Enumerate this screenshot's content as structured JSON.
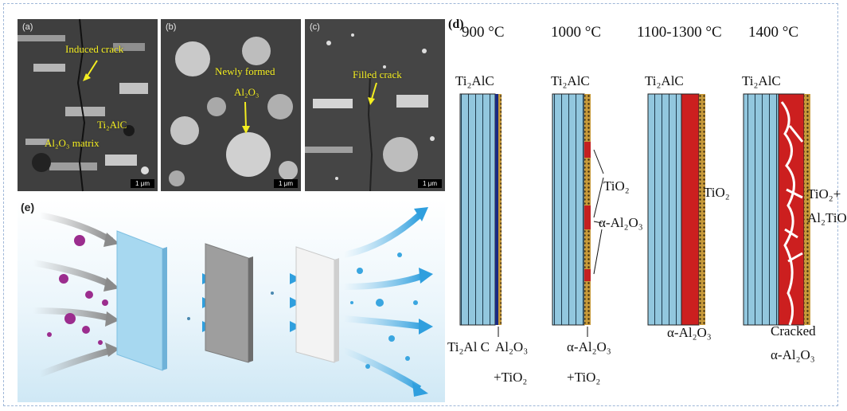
{
  "sem_panels": [
    {
      "label": "(a)",
      "scale_bar": "1 μm",
      "annotations": {
        "top": "Induced crack",
        "mid": "Ti₂AlC",
        "bottom": "Al₂O₃ matrix"
      }
    },
    {
      "label": "(b)",
      "scale_bar": "1 μm",
      "annotations": {
        "top": "Newly formed",
        "mid": "Al₂O₃"
      }
    },
    {
      "label": "(c)",
      "scale_bar": "1 μm",
      "annotations": {
        "top": "Filled crack"
      }
    }
  ],
  "filter_panel": {
    "label": "(e)"
  },
  "oxidation_panel": {
    "label": "(d)",
    "temperatures": [
      "900 °C",
      "1000 °C",
      "1100-1300 °C",
      "1400 °C"
    ],
    "top_labels": [
      "Ti₂AlC",
      "Ti₂AlC",
      "Ti₂AlC",
      "Ti₂AlC"
    ],
    "col1": {
      "bottom_left": "Ti₂Al C",
      "bottom_right": "Al₂O₃",
      "bottom_right2": "+TiO₂"
    },
    "col2": {
      "side1": "TiO₂",
      "side2": "α-Al₂O₃",
      "bottom1": "α-Al₂O₃",
      "bottom2": "+TiO₂"
    },
    "col3": {
      "side": "TiO₂",
      "bottom": "α-Al₂O₃"
    },
    "col4": {
      "side1": "TiO₂+",
      "side2": "Al₂TiO",
      "bottom1": "Cracked",
      "bottom2": "α-Al₂O₃"
    }
  }
}
